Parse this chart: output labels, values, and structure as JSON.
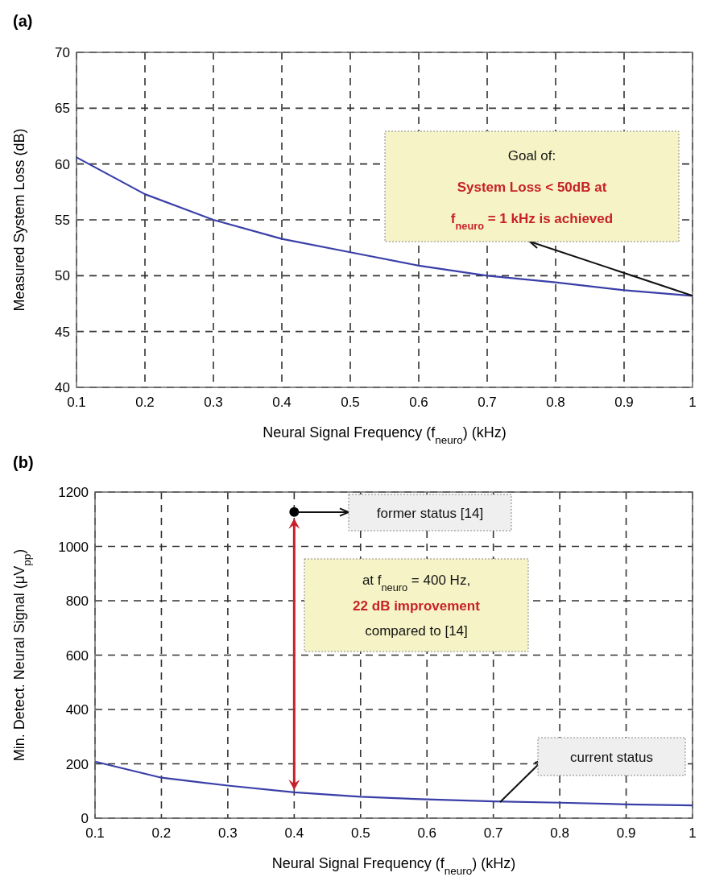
{
  "chart_data": [
    {
      "type": "line",
      "title": "(a)",
      "xlabel": "Neural Signal Frequency (f$_{neuro}$) (kHz)",
      "ylabel": "Measured System Loss (dB)",
      "x": [
        0.1,
        0.2,
        0.3,
        0.4,
        0.5,
        0.6,
        0.7,
        0.8,
        0.9,
        1.0
      ],
      "series": [
        {
          "color": "#3a3fa8",
          "values": [
            60.6,
            57.3,
            55.0,
            53.3,
            52.1,
            50.9,
            50.0,
            49.4,
            48.7,
            48.2
          ]
        }
      ],
      "xlim": [
        0.1,
        1
      ],
      "xticks": [
        0.1,
        0.2,
        0.3,
        0.4,
        0.5,
        0.6,
        0.7,
        0.8,
        0.9,
        1
      ],
      "ylim": [
        40,
        70
      ],
      "yticks": [
        40,
        45,
        50,
        55,
        60,
        65,
        70
      ],
      "grid": true,
      "marker": "none",
      "line_style": "solid",
      "annotations": [
        {
          "text": "Goal of:\nSystem Loss < 50dB at\nf$_{neuro}$ = 1 kHz is achieved",
          "x": 1,
          "y": 48.2
        }
      ]
    },
    {
      "type": "line",
      "title": "(b)",
      "xlabel": "Neural Signal Frequency (f$_{neuro}$) (kHz)",
      "ylabel": "Min. Detect. Neural Signal (μV$_{pp}$)",
      "x": [
        0.1,
        0.2,
        0.3,
        0.4,
        0.5,
        0.6,
        0.7,
        0.8,
        0.9,
        1.0
      ],
      "series": [
        {
          "color": "#3a3fa8",
          "values": [
            208,
            149,
            120,
            95,
            79,
            69,
            62,
            57,
            51,
            47
          ]
        },
        {
          "type": "scatter",
          "color": "#000000",
          "x": [
            0.4
          ],
          "values": [
            1127
          ]
        }
      ],
      "xlim": [
        0.1,
        1
      ],
      "xticks": [
        0.1,
        0.2,
        0.3,
        0.4,
        0.5,
        0.6,
        0.7,
        0.8,
        0.9,
        1
      ],
      "ylim": [
        0,
        1200
      ],
      "yticks": [
        0,
        200,
        400,
        600,
        800,
        1000,
        1200
      ],
      "grid": true,
      "line_style": "solid",
      "annotations": [
        "former status [14]",
        "at f$_{neuro}$ = 400 Hz,\n22 dB improvement\ncompared to [14]",
        "current status"
      ]
    }
  ]
}
